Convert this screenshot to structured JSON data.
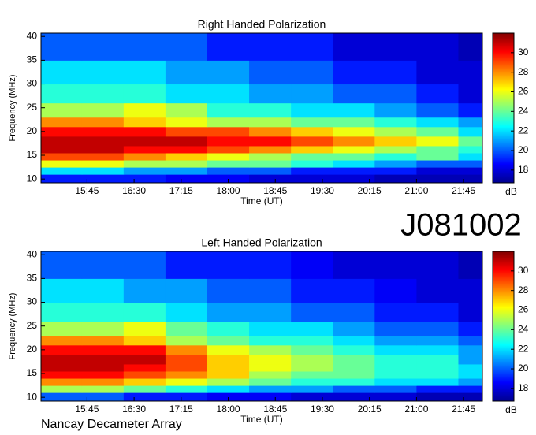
{
  "chart_data": [
    {
      "type": "heatmap",
      "title": "Right Handed Polarization",
      "xlabel": "Time (UT)",
      "ylabel": "Frequency (MHz)",
      "x": [
        901,
        940,
        980,
        1020,
        1060,
        1100,
        1140,
        1180,
        1220,
        1260,
        1300,
        1323
      ],
      "y": [
        9.2,
        11,
        12.5,
        14,
        15.5,
        17,
        19,
        21,
        23,
        26,
        30,
        35,
        40.7
      ],
      "values": [
        [
          19,
          19,
          19,
          18.5,
          18.5,
          18,
          18,
          18,
          17.5,
          17.5,
          17.5
        ],
        [
          22,
          22,
          21,
          21,
          20,
          20,
          19,
          19,
          19,
          18,
          18
        ],
        [
          26,
          26,
          25,
          25,
          24,
          24,
          23,
          22,
          21,
          20,
          20
        ],
        [
          29,
          29,
          28,
          27,
          26,
          25,
          24,
          24,
          23,
          24,
          22
        ],
        [
          31,
          31,
          30,
          30,
          29,
          28,
          27,
          26,
          25,
          24,
          23
        ],
        [
          31,
          31,
          31,
          31,
          30,
          30,
          29,
          28,
          27,
          26,
          24
        ],
        [
          30,
          30,
          30,
          29,
          29,
          28,
          27,
          26,
          25,
          24,
          22
        ],
        [
          28,
          28,
          27,
          26,
          25,
          25,
          24,
          24,
          23,
          22,
          21
        ],
        [
          25,
          25,
          26,
          25,
          23,
          23,
          22,
          22,
          21,
          20,
          19
        ],
        [
          23,
          23,
          23,
          22,
          22,
          21,
          21,
          20,
          20,
          19,
          18
        ],
        [
          22,
          22,
          22,
          21,
          21,
          20,
          20,
          19,
          19,
          18,
          18
        ],
        [
          20,
          20,
          20,
          20,
          19,
          19,
          19,
          18,
          18,
          18,
          17.5
        ]
      ],
      "xlim": [
        901,
        1323
      ],
      "ylim": [
        9.2,
        40.7
      ],
      "xticks": [
        {
          "value": 945,
          "label": "15:45"
        },
        {
          "value": 990,
          "label": "16:30"
        },
        {
          "value": 1035,
          "label": "17:15"
        },
        {
          "value": 1080,
          "label": "18:00"
        },
        {
          "value": 1125,
          "label": "18:45"
        },
        {
          "value": 1170,
          "label": "19:30"
        },
        {
          "value": 1215,
          "label": "20:15"
        },
        {
          "value": 1260,
          "label": "21:00"
        },
        {
          "value": 1305,
          "label": "21:45"
        }
      ],
      "yticks": [
        10,
        15,
        20,
        25,
        30,
        35,
        40
      ],
      "colorbar": {
        "label": "dB",
        "colormap": "jet",
        "clim": [
          16.7,
          32
        ],
        "ticks": [
          18,
          20,
          22,
          24,
          26,
          28,
          30
        ]
      }
    },
    {
      "type": "heatmap",
      "title": "Left Handed Polarization",
      "xlabel": "Time (UT)",
      "ylabel": "Frequency (MHz)",
      "x": [
        901,
        940,
        980,
        1020,
        1060,
        1100,
        1140,
        1180,
        1220,
        1260,
        1300,
        1323
      ],
      "y": [
        9.2,
        11,
        12.5,
        14,
        15.5,
        17,
        19,
        21,
        23,
        26,
        30,
        35,
        40.7
      ],
      "values": [
        [
          20,
          20,
          19,
          19,
          18.5,
          18.5,
          18,
          18,
          18,
          17.5,
          17.5
        ],
        [
          25,
          25,
          24,
          23,
          22,
          21,
          21,
          20,
          20,
          19,
          19
        ],
        [
          28,
          28,
          27,
          26,
          25,
          24,
          23,
          23,
          22,
          22,
          21
        ],
        [
          30,
          30,
          29,
          28,
          27,
          25,
          24,
          24,
          23,
          23,
          22
        ],
        [
          31,
          31,
          30,
          29,
          27,
          26,
          25,
          24,
          23,
          23,
          22
        ],
        [
          31,
          31,
          31,
          29,
          27,
          26,
          25,
          24,
          23,
          23,
          21
        ],
        [
          30,
          30,
          30,
          28,
          26,
          25,
          24,
          23,
          22,
          22,
          21
        ],
        [
          28,
          28,
          27,
          25,
          24,
          23,
          23,
          22,
          21,
          21,
          20
        ],
        [
          25,
          25,
          26,
          24,
          23,
          22,
          22,
          21,
          20,
          20,
          19
        ],
        [
          23,
          23,
          23,
          22,
          21,
          21,
          20,
          20,
          19,
          19,
          18
        ],
        [
          22,
          22,
          21,
          21,
          20,
          20,
          19,
          19,
          18.5,
          18,
          18
        ],
        [
          20,
          20,
          20,
          19,
          19,
          19,
          18.5,
          18,
          18,
          18,
          17.5
        ]
      ],
      "xlim": [
        901,
        1323
      ],
      "ylim": [
        9.2,
        40.7
      ],
      "xticks": [
        {
          "value": 945,
          "label": "15:45"
        },
        {
          "value": 990,
          "label": "16:30"
        },
        {
          "value": 1035,
          "label": "17:15"
        },
        {
          "value": 1080,
          "label": "18:00"
        },
        {
          "value": 1125,
          "label": "18:45"
        },
        {
          "value": 1170,
          "label": "19:30"
        },
        {
          "value": 1215,
          "label": "20:15"
        },
        {
          "value": 1260,
          "label": "21:00"
        },
        {
          "value": 1305,
          "label": "21:45"
        }
      ],
      "yticks": [
        10,
        15,
        20,
        25,
        30,
        35,
        40
      ],
      "colorbar": {
        "label": "dB",
        "colormap": "jet",
        "clim": [
          16.7,
          32
        ],
        "ticks": [
          18,
          20,
          22,
          24,
          26,
          28,
          30
        ]
      }
    }
  ],
  "source_id": "J081002",
  "footer": "Nancay Decameter Array"
}
